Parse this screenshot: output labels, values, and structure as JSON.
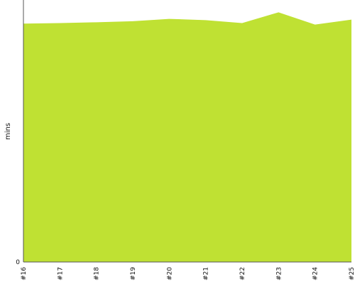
{
  "chart_data": {
    "type": "area",
    "title": "",
    "xlabel": "",
    "ylabel": "mins",
    "categories": [
      "#16",
      "#17",
      "#18",
      "#19",
      "#20",
      "#21",
      "#22",
      "#23",
      "#24",
      "#25"
    ],
    "series": [
      {
        "values": [
          91.0,
          91.2,
          91.5,
          91.9,
          92.8,
          92.3,
          91.2,
          95.3,
          90.6,
          92.5
        ]
      }
    ],
    "y_ticks": [
      "0"
    ],
    "ylim": [
      0,
      100
    ],
    "grid": false,
    "colors": {
      "fill": "#bfe133",
      "axis": "#555555",
      "text": "#111111"
    }
  }
}
